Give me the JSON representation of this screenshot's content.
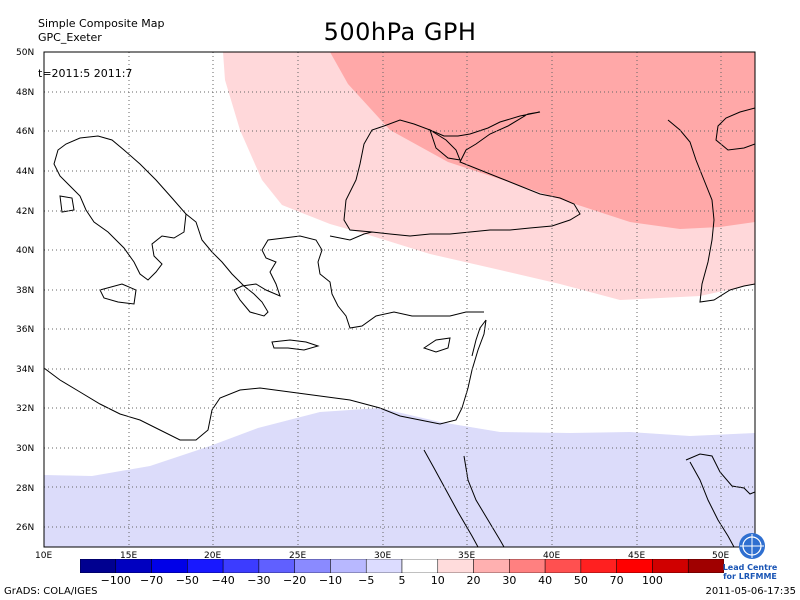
{
  "header": {
    "line1": "Simple Composite Map",
    "line2": "GPC_Exeter",
    "title": "500hPa GPH",
    "time": "t=2011:5 2011:7"
  },
  "map": {
    "lon_range": [
      10,
      50
    ],
    "lat_range": [
      25,
      50
    ],
    "lon_ticks": [
      "10E",
      "15E",
      "20E",
      "25E",
      "30E",
      "35E",
      "40E",
      "45E",
      "50E"
    ],
    "lat_ticks": [
      "26N",
      "28N",
      "30N",
      "32N",
      "34N",
      "36N",
      "38N",
      "40N",
      "42N",
      "44N",
      "46N",
      "48N",
      "50N"
    ],
    "grid": "dotted"
  },
  "colorbar": {
    "labels": [
      "−100",
      "−70",
      "−50",
      "−40",
      "−30",
      "−20",
      "−10",
      "−5",
      "5",
      "10",
      "20",
      "30",
      "40",
      "50",
      "70",
      "100"
    ],
    "colors": [
      "#000090",
      "#0000c0",
      "#0000e8",
      "#1818ff",
      "#3c3cff",
      "#6060ff",
      "#8a8aff",
      "#b8b8ff",
      "#dcdcff",
      "#ffffff",
      "#ffdcdc",
      "#ffb0b0",
      "#ff8080",
      "#ff5050",
      "#ff2020",
      "#ff0000",
      "#d00000",
      "#a00000"
    ]
  },
  "shading": {
    "positive_light": "#ffd8da",
    "positive_medium": "#ffa8a8",
    "negative_light": "#dcdcfa"
  },
  "logo": {
    "icon": "un-emblem-icon",
    "line1": "Lead Centre",
    "line2": "for LRFMME"
  },
  "footer": {
    "left": "GrADS: COLA/IGES",
    "right": "2011-05-06-17:35"
  }
}
